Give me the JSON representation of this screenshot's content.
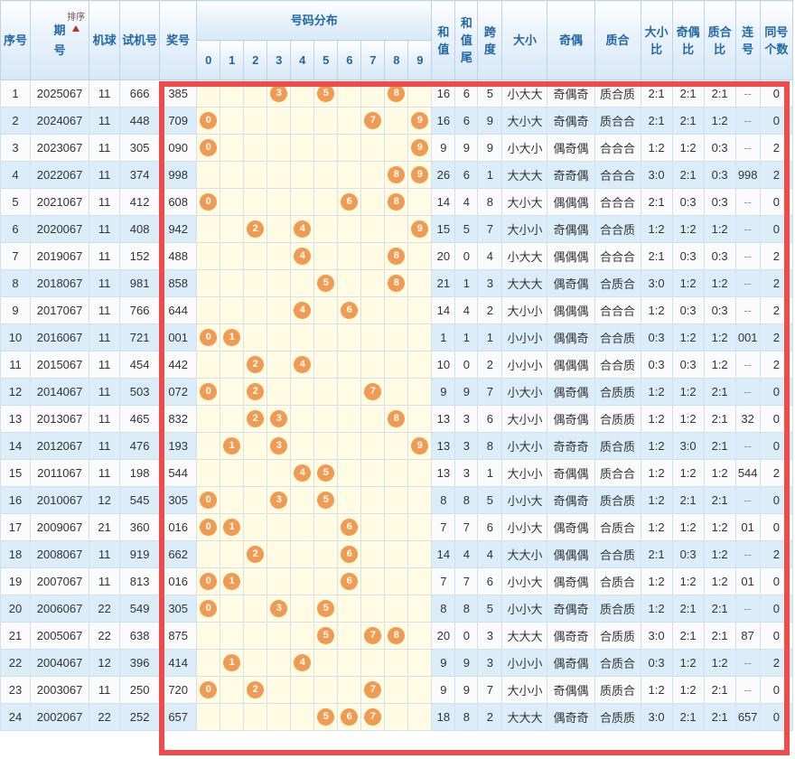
{
  "sort": {
    "label": "排序",
    "direction": "asc"
  },
  "colors": {
    "ball": "#f09a52",
    "highlight_border": "#ee4b4b",
    "header_text": "#2368a6",
    "row_even_bg": "#dcedfa",
    "distribution_bg": "#fffce3"
  },
  "table": {
    "headers": {
      "seq": "序号",
      "period": "期号",
      "machine_ball": "机球",
      "test_number": "试机号",
      "prize_number": "奖号",
      "distribution": "号码分布",
      "sum": "和值",
      "sum_tail": "和值尾",
      "span": "跨度",
      "size": "大小",
      "parity": "奇偶",
      "prime": "质合",
      "size_ratio": "大小比",
      "parity_ratio": "奇偶比",
      "prime_ratio": "质合比",
      "consecutive": "连号",
      "same_count": "同号个数"
    },
    "digit_columns": [
      "0",
      "1",
      "2",
      "3",
      "4",
      "5",
      "6",
      "7",
      "8",
      "9"
    ],
    "rows": [
      {
        "seq": "1",
        "period": "2025067",
        "machine_ball": "11",
        "test_number": "666",
        "prize_number": "385",
        "digits": [
          3,
          5,
          8
        ],
        "sum": "16",
        "sum_tail": "6",
        "span": "5",
        "size": "小大大",
        "parity": "奇偶奇",
        "prime": "质合质",
        "size_ratio": "2:1",
        "parity_ratio": "2:1",
        "prime_ratio": "2:1",
        "consecutive": "--",
        "same_count": "0"
      },
      {
        "seq": "2",
        "period": "2024067",
        "machine_ball": "11",
        "test_number": "448",
        "prize_number": "709",
        "digits": [
          0,
          7,
          9
        ],
        "sum": "16",
        "sum_tail": "6",
        "span": "9",
        "size": "大小大",
        "parity": "奇偶奇",
        "prime": "质合合",
        "size_ratio": "2:1",
        "parity_ratio": "2:1",
        "prime_ratio": "1:2",
        "consecutive": "--",
        "same_count": "0"
      },
      {
        "seq": "3",
        "period": "2023067",
        "machine_ball": "11",
        "test_number": "305",
        "prize_number": "090",
        "digits": [
          0,
          9
        ],
        "sum": "9",
        "sum_tail": "9",
        "span": "9",
        "size": "小大小",
        "parity": "偶奇偶",
        "prime": "合合合",
        "size_ratio": "1:2",
        "parity_ratio": "1:2",
        "prime_ratio": "0:3",
        "consecutive": "--",
        "same_count": "2"
      },
      {
        "seq": "4",
        "period": "2022067",
        "machine_ball": "11",
        "test_number": "374",
        "prize_number": "998",
        "digits": [
          8,
          9
        ],
        "sum": "26",
        "sum_tail": "6",
        "span": "1",
        "size": "大大大",
        "parity": "奇奇偶",
        "prime": "合合合",
        "size_ratio": "3:0",
        "parity_ratio": "2:1",
        "prime_ratio": "0:3",
        "consecutive": "998",
        "same_count": "2"
      },
      {
        "seq": "5",
        "period": "2021067",
        "machine_ball": "11",
        "test_number": "412",
        "prize_number": "608",
        "digits": [
          0,
          6,
          8
        ],
        "sum": "14",
        "sum_tail": "4",
        "span": "8",
        "size": "大小大",
        "parity": "偶偶偶",
        "prime": "合合合",
        "size_ratio": "2:1",
        "parity_ratio": "0:3",
        "prime_ratio": "0:3",
        "consecutive": "--",
        "same_count": "0"
      },
      {
        "seq": "6",
        "period": "2020067",
        "machine_ball": "11",
        "test_number": "408",
        "prize_number": "942",
        "digits": [
          2,
          4,
          9
        ],
        "sum": "15",
        "sum_tail": "5",
        "span": "7",
        "size": "大小小",
        "parity": "奇偶偶",
        "prime": "合合质",
        "size_ratio": "1:2",
        "parity_ratio": "1:2",
        "prime_ratio": "1:2",
        "consecutive": "--",
        "same_count": "0"
      },
      {
        "seq": "7",
        "period": "2019067",
        "machine_ball": "11",
        "test_number": "152",
        "prize_number": "488",
        "digits": [
          4,
          8
        ],
        "sum": "20",
        "sum_tail": "0",
        "span": "4",
        "size": "小大大",
        "parity": "偶偶偶",
        "prime": "合合合",
        "size_ratio": "2:1",
        "parity_ratio": "0:3",
        "prime_ratio": "0:3",
        "consecutive": "--",
        "same_count": "2"
      },
      {
        "seq": "8",
        "period": "2018067",
        "machine_ball": "11",
        "test_number": "981",
        "prize_number": "858",
        "digits": [
          5,
          8
        ],
        "sum": "21",
        "sum_tail": "1",
        "span": "3",
        "size": "大大大",
        "parity": "偶奇偶",
        "prime": "合质合",
        "size_ratio": "3:0",
        "parity_ratio": "1:2",
        "prime_ratio": "1:2",
        "consecutive": "--",
        "same_count": "2"
      },
      {
        "seq": "9",
        "period": "2017067",
        "machine_ball": "11",
        "test_number": "766",
        "prize_number": "644",
        "digits": [
          4,
          6
        ],
        "sum": "14",
        "sum_tail": "4",
        "span": "2",
        "size": "大小小",
        "parity": "偶偶偶",
        "prime": "合合合",
        "size_ratio": "1:2",
        "parity_ratio": "0:3",
        "prime_ratio": "0:3",
        "consecutive": "--",
        "same_count": "2"
      },
      {
        "seq": "10",
        "period": "2016067",
        "machine_ball": "11",
        "test_number": "721",
        "prize_number": "001",
        "digits": [
          0,
          1
        ],
        "sum": "1",
        "sum_tail": "1",
        "span": "1",
        "size": "小小小",
        "parity": "偶偶奇",
        "prime": "合合质",
        "size_ratio": "0:3",
        "parity_ratio": "1:2",
        "prime_ratio": "1:2",
        "consecutive": "001",
        "same_count": "2"
      },
      {
        "seq": "11",
        "period": "2015067",
        "machine_ball": "11",
        "test_number": "454",
        "prize_number": "442",
        "digits": [
          2,
          4
        ],
        "sum": "10",
        "sum_tail": "0",
        "span": "2",
        "size": "小小小",
        "parity": "偶偶偶",
        "prime": "合合质",
        "size_ratio": "0:3",
        "parity_ratio": "0:3",
        "prime_ratio": "1:2",
        "consecutive": "--",
        "same_count": "2"
      },
      {
        "seq": "12",
        "period": "2014067",
        "machine_ball": "11",
        "test_number": "503",
        "prize_number": "072",
        "digits": [
          0,
          2,
          7
        ],
        "sum": "9",
        "sum_tail": "9",
        "span": "7",
        "size": "小大小",
        "parity": "偶奇偶",
        "prime": "合质质",
        "size_ratio": "1:2",
        "parity_ratio": "1:2",
        "prime_ratio": "2:1",
        "consecutive": "--",
        "same_count": "0"
      },
      {
        "seq": "13",
        "period": "2013067",
        "machine_ball": "11",
        "test_number": "465",
        "prize_number": "832",
        "digits": [
          2,
          3,
          8
        ],
        "sum": "13",
        "sum_tail": "3",
        "span": "6",
        "size": "大小小",
        "parity": "偶奇偶",
        "prime": "合质质",
        "size_ratio": "1:2",
        "parity_ratio": "1:2",
        "prime_ratio": "2:1",
        "consecutive": "32",
        "same_count": "0"
      },
      {
        "seq": "14",
        "period": "2012067",
        "machine_ball": "11",
        "test_number": "476",
        "prize_number": "193",
        "digits": [
          1,
          3,
          9
        ],
        "sum": "13",
        "sum_tail": "3",
        "span": "8",
        "size": "小大小",
        "parity": "奇奇奇",
        "prime": "质合质",
        "size_ratio": "1:2",
        "parity_ratio": "3:0",
        "prime_ratio": "2:1",
        "consecutive": "--",
        "same_count": "0"
      },
      {
        "seq": "15",
        "period": "2011067",
        "machine_ball": "11",
        "test_number": "198",
        "prize_number": "544",
        "digits": [
          4,
          5
        ],
        "sum": "13",
        "sum_tail": "3",
        "span": "1",
        "size": "大小小",
        "parity": "奇偶偶",
        "prime": "质合合",
        "size_ratio": "1:2",
        "parity_ratio": "1:2",
        "prime_ratio": "1:2",
        "consecutive": "544",
        "same_count": "2"
      },
      {
        "seq": "16",
        "period": "2010067",
        "machine_ball": "12",
        "test_number": "545",
        "prize_number": "305",
        "digits": [
          0,
          3,
          5
        ],
        "sum": "8",
        "sum_tail": "8",
        "span": "5",
        "size": "小小大",
        "parity": "奇偶奇",
        "prime": "质合质",
        "size_ratio": "1:2",
        "parity_ratio": "2:1",
        "prime_ratio": "2:1",
        "consecutive": "--",
        "same_count": "0"
      },
      {
        "seq": "17",
        "period": "2009067",
        "machine_ball": "21",
        "test_number": "360",
        "prize_number": "016",
        "digits": [
          0,
          1,
          6
        ],
        "sum": "7",
        "sum_tail": "7",
        "span": "6",
        "size": "小小大",
        "parity": "偶奇偶",
        "prime": "合质合",
        "size_ratio": "1:2",
        "parity_ratio": "1:2",
        "prime_ratio": "1:2",
        "consecutive": "01",
        "same_count": "0"
      },
      {
        "seq": "18",
        "period": "2008067",
        "machine_ball": "11",
        "test_number": "919",
        "prize_number": "662",
        "digits": [
          2,
          6
        ],
        "sum": "14",
        "sum_tail": "4",
        "span": "4",
        "size": "大大小",
        "parity": "偶偶偶",
        "prime": "合合质",
        "size_ratio": "2:1",
        "parity_ratio": "0:3",
        "prime_ratio": "1:2",
        "consecutive": "--",
        "same_count": "2"
      },
      {
        "seq": "19",
        "period": "2007067",
        "machine_ball": "11",
        "test_number": "813",
        "prize_number": "016",
        "digits": [
          0,
          1,
          6
        ],
        "sum": "7",
        "sum_tail": "7",
        "span": "6",
        "size": "小小大",
        "parity": "偶奇偶",
        "prime": "合质合",
        "size_ratio": "1:2",
        "parity_ratio": "1:2",
        "prime_ratio": "1:2",
        "consecutive": "01",
        "same_count": "0"
      },
      {
        "seq": "20",
        "period": "2006067",
        "machine_ball": "22",
        "test_number": "549",
        "prize_number": "305",
        "digits": [
          0,
          3,
          5
        ],
        "sum": "8",
        "sum_tail": "8",
        "span": "5",
        "size": "小小大",
        "parity": "奇偶奇",
        "prime": "质合质",
        "size_ratio": "1:2",
        "parity_ratio": "2:1",
        "prime_ratio": "2:1",
        "consecutive": "--",
        "same_count": "0"
      },
      {
        "seq": "21",
        "period": "2005067",
        "machine_ball": "22",
        "test_number": "638",
        "prize_number": "875",
        "digits": [
          5,
          7,
          8
        ],
        "sum": "20",
        "sum_tail": "0",
        "span": "3",
        "size": "大大大",
        "parity": "偶奇奇",
        "prime": "合质质",
        "size_ratio": "3:0",
        "parity_ratio": "2:1",
        "prime_ratio": "2:1",
        "consecutive": "87",
        "same_count": "0"
      },
      {
        "seq": "22",
        "period": "2004067",
        "machine_ball": "12",
        "test_number": "396",
        "prize_number": "414",
        "digits": [
          1,
          4
        ],
        "sum": "9",
        "sum_tail": "9",
        "span": "3",
        "size": "小小小",
        "parity": "偶奇偶",
        "prime": "合质合",
        "size_ratio": "0:3",
        "parity_ratio": "1:2",
        "prime_ratio": "1:2",
        "consecutive": "--",
        "same_count": "2"
      },
      {
        "seq": "23",
        "period": "2003067",
        "machine_ball": "11",
        "test_number": "250",
        "prize_number": "720",
        "digits": [
          0,
          2,
          7
        ],
        "sum": "9",
        "sum_tail": "9",
        "span": "7",
        "size": "大小小",
        "parity": "奇偶偶",
        "prime": "质质合",
        "size_ratio": "1:2",
        "parity_ratio": "1:2",
        "prime_ratio": "2:1",
        "consecutive": "--",
        "same_count": "0"
      },
      {
        "seq": "24",
        "period": "2002067",
        "machine_ball": "22",
        "test_number": "252",
        "prize_number": "657",
        "digits": [
          5,
          6,
          7
        ],
        "sum": "18",
        "sum_tail": "8",
        "span": "2",
        "size": "大大大",
        "parity": "偶奇奇",
        "prime": "合质质",
        "size_ratio": "3:0",
        "parity_ratio": "2:1",
        "prime_ratio": "2:1",
        "consecutive": "657",
        "same_count": "0"
      }
    ]
  }
}
